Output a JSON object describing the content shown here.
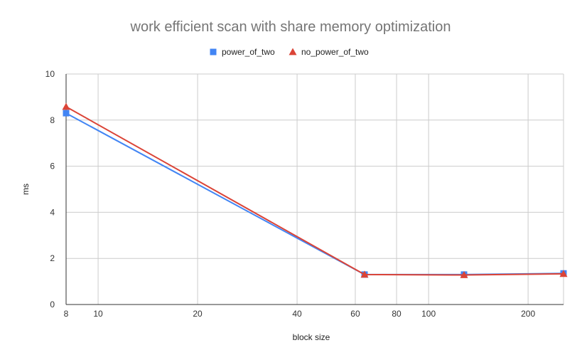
{
  "chart_data": {
    "type": "line",
    "title": "work efficient scan with share memory optimization",
    "xlabel": "block size",
    "ylabel": "ms",
    "x_scale": "log",
    "xlim": [
      8,
      256
    ],
    "ylim": [
      0,
      10
    ],
    "x_ticks": [
      8,
      10,
      20,
      40,
      60,
      80,
      100,
      200
    ],
    "y_ticks": [
      0,
      2,
      4,
      6,
      8,
      10
    ],
    "grid": true,
    "legend_position": "top",
    "series": [
      {
        "name": "power_of_two",
        "color": "#4285f4",
        "marker": "square",
        "x": [
          8,
          64,
          128,
          256
        ],
        "y": [
          8.3,
          1.3,
          1.3,
          1.35
        ]
      },
      {
        "name": "no_power_of_two",
        "color": "#db4437",
        "marker": "triangle",
        "x": [
          8,
          64,
          128,
          256
        ],
        "y": [
          8.58,
          1.3,
          1.28,
          1.33
        ]
      }
    ]
  }
}
